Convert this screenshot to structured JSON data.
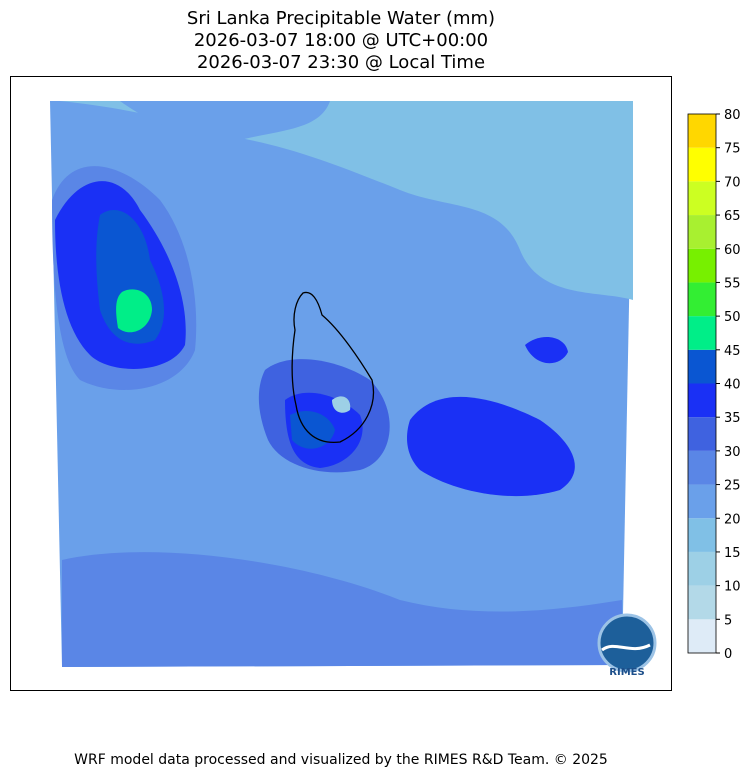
{
  "header": {
    "title_lines": [
      "Sri Lanka Precipitable Water (mm)",
      "2026-03-07 18:00 @ UTC+00:00",
      "2026-03-07 23:30 @ Local Time"
    ]
  },
  "colorbar": {
    "levels": [
      0,
      5,
      10,
      15,
      20,
      25,
      30,
      35,
      40,
      45,
      50,
      55,
      60,
      65,
      70,
      75,
      80
    ],
    "colors": [
      "#deebf7",
      "#b3d9e8",
      "#9dd0e6",
      "#80c0e6",
      "#6aa0ea",
      "#5a86e6",
      "#3f62e0",
      "#1a30f5",
      "#0a56d2",
      "#00ee88",
      "#33ee33",
      "#77f000",
      "#a8f030",
      "#ccff22",
      "#ffff00",
      "#ffd700"
    ]
  },
  "logo": {
    "text": "RIMES"
  },
  "footer": {
    "text": "WRF model data processed and visualized by the RIMES R&D Team. © 2025"
  }
}
